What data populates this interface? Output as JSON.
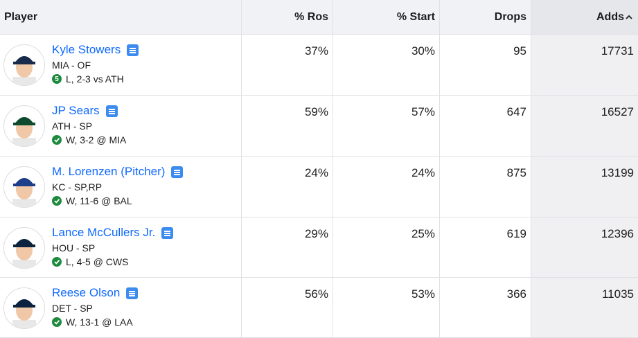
{
  "table": {
    "columns": [
      "Player",
      "% Ros",
      "% Start",
      "Drops",
      "Adds"
    ],
    "rows": [
      {
        "name": "Kyle Stowers",
        "position": "MIA - OF",
        "badge": "5",
        "game": "L, 2-3 vs ATH",
        "ros": "37%",
        "start": "30%",
        "drops": 95,
        "adds": 17731
      },
      {
        "name": "JP Sears",
        "position": "ATH - SP",
        "game": "W, 3-2 @ MIA",
        "ros": "59%",
        "start": "57%",
        "drops": 647,
        "adds": 16527
      },
      {
        "name": "M. Lorenzen (Pitcher)",
        "position": "KC - SP,RP",
        "game": "W, 11-6 @ BAL",
        "ros": "24%",
        "start": "24%",
        "drops": 875,
        "adds": 13199
      },
      {
        "name": "Lance McCullers Jr.",
        "position": "HOU - SP",
        "game": "L, 4-5 @ CWS",
        "ros": "29%",
        "start": "25%",
        "drops": 619,
        "adds": 12396
      },
      {
        "name": "Reese Olson",
        "position": "DET - SP",
        "game": "W, 13-1 @ LAA",
        "ros": "56%",
        "start": "53%",
        "drops": 366,
        "adds": 11035
      }
    ]
  }
}
